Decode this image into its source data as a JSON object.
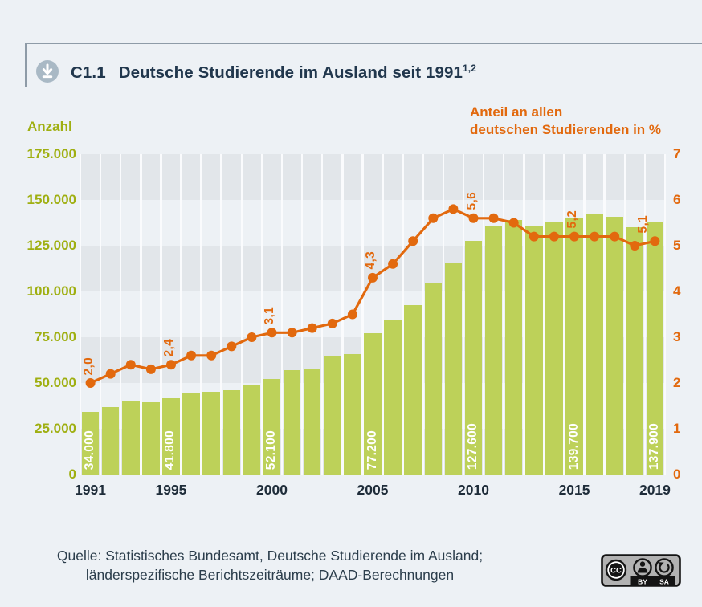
{
  "header": {
    "code": "C1.1",
    "title": "Deutsche Studierende im Ausland seit 1991",
    "superscript": "1,2",
    "download_icon": "download-icon"
  },
  "axes": {
    "left_title": "Anzahl",
    "right_title_line1": "Anteil an allen",
    "right_title_line2": "deutschen Studierenden in %",
    "left_ticks": [
      "175.000",
      "150.000",
      "125.000",
      "100.000",
      "75.000",
      "50.000",
      "25.000",
      "0"
    ],
    "right_ticks": [
      "7",
      "6",
      "5",
      "4",
      "3",
      "2",
      "1",
      "0"
    ],
    "x_ticks": [
      "1991",
      "1995",
      "2000",
      "2005",
      "2010",
      "2015",
      "2019"
    ]
  },
  "chart_data": {
    "type": "bar+line",
    "categories": [
      1991,
      1992,
      1993,
      1994,
      1995,
      1996,
      1997,
      1998,
      1999,
      2000,
      2001,
      2002,
      2003,
      2004,
      2005,
      2006,
      2007,
      2008,
      2009,
      2010,
      2011,
      2012,
      2013,
      2014,
      2015,
      2016,
      2017,
      2018,
      2019
    ],
    "series": [
      {
        "name": "Deutsche Studierende im Ausland (Anzahl)",
        "type": "bar",
        "values": [
          34000,
          37000,
          40000,
          39500,
          41800,
          44500,
          45000,
          46000,
          49000,
          52100,
          57000,
          58000,
          64500,
          66000,
          77200,
          84500,
          92500,
          105000,
          116000,
          127600,
          136000,
          139000,
          135500,
          138000,
          139700,
          142000,
          141000,
          135000,
          137900
        ]
      },
      {
        "name": "Anteil an allen deutschen Studierenden in %",
        "type": "line",
        "values": [
          2.0,
          2.2,
          2.4,
          2.3,
          2.4,
          2.6,
          2.6,
          2.8,
          3.0,
          3.1,
          3.1,
          3.2,
          3.3,
          3.5,
          4.3,
          4.6,
          5.1,
          5.6,
          5.8,
          5.6,
          5.6,
          5.5,
          5.2,
          5.2,
          5.2,
          5.2,
          5.2,
          5.0,
          5.1
        ]
      }
    ],
    "bar_value_labels": {
      "1991": "34.000",
      "1995": "41.800",
      "2000": "52.100",
      "2005": "77.200",
      "2010": "127.600",
      "2015": "139.700",
      "2019": "137.900"
    },
    "line_value_labels": {
      "1991": "2,0",
      "1995": "2,4",
      "2000": "3,1",
      "2005": "4,3",
      "2010": "5,6",
      "2015": "5,2",
      "2019": "5,1"
    },
    "y_left_range": [
      0,
      175000
    ],
    "y_left_step": 25000,
    "y_right_range": [
      0,
      7
    ],
    "y_right_step": 1,
    "grid": "alternating horizontal bands + white vertical column separators",
    "legend_position": "none"
  },
  "source": {
    "line1": "Quelle: Statistisches Bundesamt, Deutsche Studierende im Ausland;",
    "line2": "länderspezifische Berichtszeiträume; DAAD-Berechnungen"
  },
  "license": {
    "cc": "CC",
    "by": "BY",
    "sa": "SA"
  },
  "colors": {
    "background": "#edf1f5",
    "band": "#e2e6ea",
    "separator": "#fafbfd",
    "bar": "#bdd159",
    "bar_label": "#ffffff",
    "line": "#e2690e",
    "left_axis_text": "#9faf11",
    "right_axis_text": "#e2690e",
    "x_axis_text": "#1f2d3a",
    "title_text": "#21374d",
    "source_text": "#2c3e4c",
    "rule": "#8e9ba7",
    "icon_circle": "#a9b9c5"
  }
}
